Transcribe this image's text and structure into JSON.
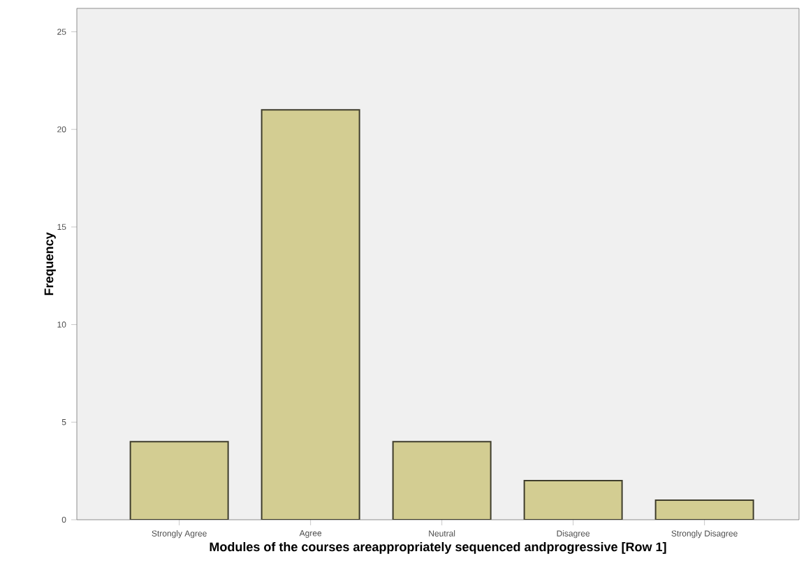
{
  "chart_data": {
    "type": "bar",
    "xlabel": "Modules of the courses areappropriately sequenced andprogressive [Row 1]",
    "ylabel": "Frequency",
    "categories": [
      "Strongly Agree",
      "Agree",
      "Neutral",
      "Disagree",
      "Strongly Disagree"
    ],
    "values": [
      4,
      21,
      4,
      2,
      1
    ],
    "color": "#d3cd92",
    "ylim": [
      0,
      26.2
    ],
    "yticks": [
      0,
      5,
      10,
      15,
      20,
      25
    ]
  }
}
